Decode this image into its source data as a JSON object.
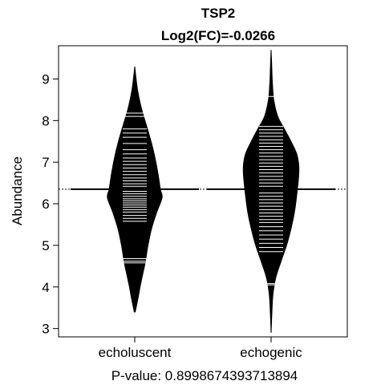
{
  "chart_data": {
    "type": "beanplot",
    "title": "TSP2",
    "subtitle": "Log2(FC)=-0.0266",
    "ylabel": "Abundance",
    "xlabel": "P-value: 0.8998674393713894",
    "ylim": [
      2.8,
      9.8
    ],
    "yticks": [
      3,
      4,
      5,
      6,
      7,
      8,
      9
    ],
    "overall_line": 6.35,
    "categories": [
      "echoluscent",
      "echogenic"
    ],
    "series": [
      {
        "density": [
          [
            3.4,
            0.01
          ],
          [
            3.7,
            0.07
          ],
          [
            4.0,
            0.12
          ],
          [
            4.3,
            0.18
          ],
          [
            4.6,
            0.24
          ],
          [
            5.0,
            0.3
          ],
          [
            5.4,
            0.38
          ],
          [
            5.8,
            0.5
          ],
          [
            6.15,
            0.62
          ],
          [
            6.35,
            0.58
          ],
          [
            6.7,
            0.53
          ],
          [
            7.1,
            0.46
          ],
          [
            7.5,
            0.37
          ],
          [
            7.9,
            0.26
          ],
          [
            8.3,
            0.15
          ],
          [
            8.7,
            0.07
          ],
          [
            9.0,
            0.03
          ],
          [
            9.3,
            0.0
          ]
        ],
        "points": [
          4.58,
          4.62,
          4.68,
          5.58,
          5.65,
          5.72,
          5.8,
          5.86,
          5.92,
          5.97,
          6.02,
          6.07,
          6.12,
          6.18,
          6.24,
          6.3,
          6.36,
          6.42,
          6.48,
          6.55,
          6.62,
          6.7,
          6.78,
          6.86,
          6.94,
          7.02,
          7.1,
          7.2,
          7.3,
          7.45,
          7.6,
          7.7,
          7.8,
          8.1,
          8.18
        ],
        "mean": 6.35
      },
      {
        "density": [
          [
            2.9,
            0.0
          ],
          [
            3.3,
            0.015
          ],
          [
            3.8,
            0.04
          ],
          [
            4.2,
            0.1
          ],
          [
            4.6,
            0.22
          ],
          [
            5.0,
            0.35
          ],
          [
            5.4,
            0.45
          ],
          [
            5.8,
            0.53
          ],
          [
            6.2,
            0.58
          ],
          [
            6.6,
            0.62
          ],
          [
            6.9,
            0.63
          ],
          [
            7.2,
            0.58
          ],
          [
            7.5,
            0.45
          ],
          [
            7.8,
            0.3
          ],
          [
            8.1,
            0.15
          ],
          [
            8.5,
            0.06
          ],
          [
            8.9,
            0.03
          ],
          [
            9.3,
            0.015
          ],
          [
            9.7,
            0.0
          ]
        ],
        "points": [
          4.05,
          4.08,
          4.85,
          4.95,
          5.05,
          5.15,
          5.25,
          5.35,
          5.45,
          5.55,
          5.62,
          5.7,
          5.78,
          5.86,
          5.94,
          6.02,
          6.1,
          6.18,
          6.26,
          6.34,
          6.42,
          6.5,
          6.58,
          6.66,
          6.74,
          6.82,
          6.9,
          6.98,
          7.06,
          7.14,
          7.22,
          7.3,
          7.38,
          7.46,
          7.54,
          7.62,
          7.7,
          7.78,
          7.86,
          8.58
        ],
        "mean": 6.35
      }
    ]
  }
}
